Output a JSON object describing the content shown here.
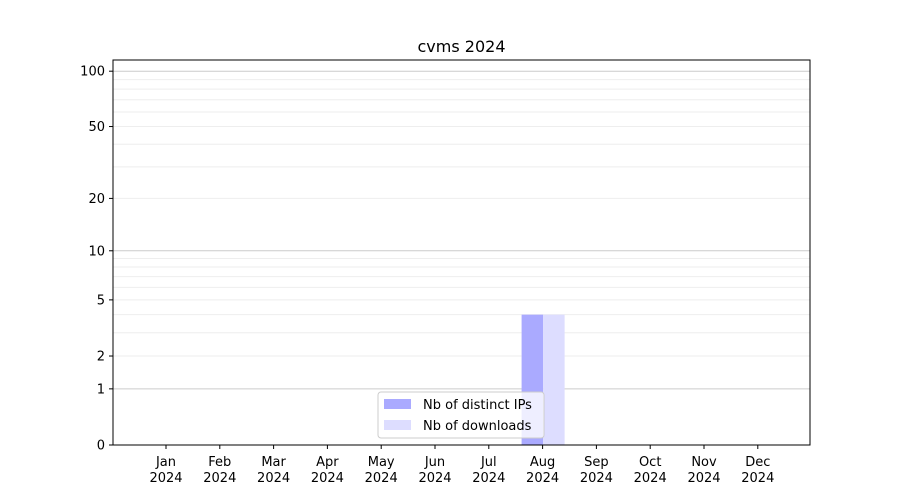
{
  "chart_data": {
    "type": "bar",
    "title": "cvms 2024",
    "xlabel": "",
    "ylabel": "",
    "yscale": "symlog",
    "ylim": [
      0,
      115
    ],
    "yticks": [
      0,
      1,
      2,
      5,
      10,
      20,
      50,
      100
    ],
    "categories": [
      "Jan\n2024",
      "Feb\n2024",
      "Mar\n2024",
      "Apr\n2024",
      "May\n2024",
      "Jun\n2024",
      "Jul\n2024",
      "Aug\n2024",
      "Sep\n2024",
      "Oct\n2024",
      "Nov\n2024",
      "Dec\n2024"
    ],
    "series": [
      {
        "name": "Nb of distinct IPs",
        "color": "#aaaaff",
        "values": [
          0,
          0,
          0,
          0,
          0,
          0,
          0,
          4,
          0,
          0,
          0,
          0
        ]
      },
      {
        "name": "Nb of downloads",
        "color": "#ddddff",
        "values": [
          0,
          0,
          0,
          0,
          0,
          0,
          0,
          4,
          0,
          0,
          0,
          0
        ]
      }
    ],
    "grid": true,
    "legend": "lower-center"
  }
}
